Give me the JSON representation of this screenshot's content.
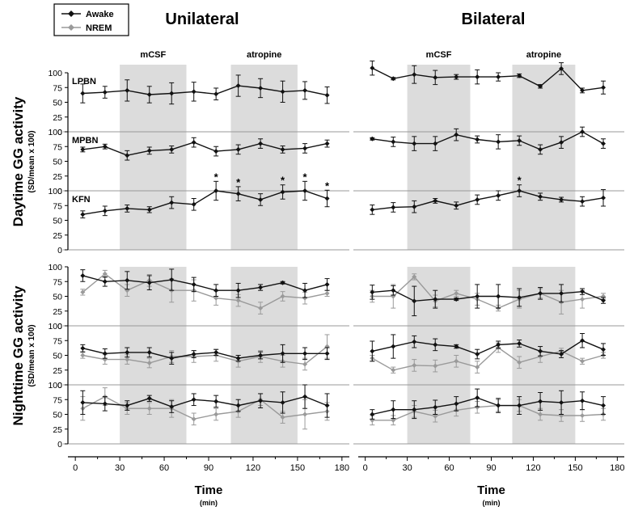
{
  "legend": {
    "entries": [
      {
        "name": "Awake",
        "color": "#111111"
      },
      {
        "name": "NREM",
        "color": "#9a9a9a"
      }
    ]
  },
  "y_labels": {
    "daytime": {
      "main": "Daytime GG activity",
      "sub": "(SD/mean x 100)"
    },
    "nighttime": {
      "main": "Nighttime GG activity",
      "sub": "(SD/mean x 100)"
    }
  },
  "chart_data": {
    "type": "line",
    "columns": [
      {
        "title": "Unilateral",
        "xlabel": "Time",
        "xunit": "(min)"
      },
      {
        "title": "Bilateral",
        "xlabel": "Time",
        "xunit": "(min)"
      }
    ],
    "shading": [
      {
        "label": "mCSF",
        "x": [
          30,
          75
        ]
      },
      {
        "label": "atropine",
        "x": [
          105,
          150
        ]
      }
    ],
    "xlim": [
      -5,
      185
    ],
    "xticks": [
      0,
      30,
      60,
      90,
      120,
      150,
      180
    ],
    "ylim": [
      0,
      100
    ],
    "yticks": [
      0,
      25,
      50,
      75,
      100
    ],
    "x": [
      5,
      20,
      35,
      50,
      65,
      80,
      95,
      110,
      125,
      140,
      155,
      170
    ],
    "day_rows": [
      {
        "label": "LPBN",
        "unilateral": {
          "awake": [
            65,
            67,
            70,
            63,
            65,
            68,
            64,
            78,
            74,
            68,
            70,
            62
          ],
          "err": [
            16,
            10,
            18,
            14,
            18,
            16,
            10,
            18,
            16,
            18,
            15,
            14
          ],
          "stars": []
        },
        "bilateral": {
          "awake": [
            108,
            90,
            97,
            92,
            93,
            93,
            93,
            95,
            77,
            107,
            70,
            75
          ],
          "err": [
            12,
            2,
            15,
            12,
            4,
            12,
            7,
            3,
            3,
            10,
            4,
            11
          ],
          "stars": []
        }
      },
      {
        "label": "MPBN",
        "unilateral": {
          "awake": [
            70,
            75,
            60,
            68,
            70,
            82,
            67,
            70,
            80,
            70,
            72,
            80
          ],
          "err": [
            4,
            4,
            8,
            6,
            6,
            8,
            8,
            8,
            8,
            6,
            8,
            6
          ],
          "stars": []
        },
        "bilateral": {
          "awake": [
            88,
            83,
            80,
            80,
            95,
            87,
            83,
            85,
            70,
            82,
            100,
            80
          ],
          "err": [
            2,
            8,
            12,
            12,
            10,
            6,
            12,
            8,
            8,
            10,
            8,
            8
          ],
          "stars": []
        }
      },
      {
        "label": "KFN",
        "unilateral": {
          "awake": [
            60,
            66,
            70,
            68,
            80,
            77,
            100,
            95,
            85,
            98,
            100,
            87
          ],
          "err": [
            6,
            8,
            6,
            5,
            10,
            10,
            16,
            12,
            10,
            12,
            16,
            14
          ],
          "stars": [
            95,
            110,
            140,
            155,
            170
          ]
        },
        "bilateral": {
          "awake": [
            68,
            72,
            73,
            83,
            75,
            85,
            92,
            100,
            90,
            85,
            82,
            88
          ],
          "err": [
            8,
            8,
            10,
            4,
            6,
            8,
            8,
            10,
            6,
            4,
            8,
            14
          ],
          "stars": [
            110
          ]
        }
      }
    ],
    "night_rows": [
      {
        "unilateral": {
          "awake": [
            85,
            75,
            77,
            73,
            78,
            70,
            60,
            60,
            65,
            73,
            60,
            70
          ],
          "awake_err": [
            10,
            8,
            15,
            12,
            18,
            12,
            10,
            12,
            5,
            2,
            12,
            10
          ],
          "nrem": [
            57,
            88,
            60,
            77,
            60,
            60,
            47,
            43,
            30,
            50,
            47,
            55
          ],
          "nrem_err": [
            5,
            6,
            10,
            10,
            20,
            18,
            12,
            10,
            10,
            8,
            10,
            5
          ]
        },
        "bilateral": {
          "awake": [
            57,
            60,
            42,
            45,
            45,
            50,
            50,
            48,
            55,
            55,
            58,
            43
          ],
          "awake_err": [
            12,
            8,
            25,
            15,
            2,
            20,
            20,
            15,
            10,
            15,
            5,
            5
          ],
          "nrem": [
            50,
            50,
            83,
            42,
            55,
            45,
            30,
            45,
            55,
            40,
            45,
            50
          ],
          "nrem_err": [
            10,
            20,
            5,
            10,
            5,
            10,
            5,
            15,
            8,
            20,
            15,
            5
          ]
        }
      },
      {
        "unilateral": {
          "awake": [
            62,
            53,
            55,
            55,
            45,
            52,
            55,
            45,
            50,
            53,
            53,
            53
          ],
          "awake_err": [
            6,
            8,
            8,
            8,
            10,
            6,
            5,
            5,
            6,
            15,
            10,
            10
          ],
          "nrem": [
            50,
            43,
            43,
            37,
            48,
            48,
            50,
            40,
            48,
            40,
            35,
            65
          ],
          "nrem_err": [
            5,
            8,
            8,
            8,
            10,
            10,
            10,
            10,
            10,
            10,
            10,
            20
          ]
        },
        "bilateral": {
          "awake": [
            57,
            65,
            73,
            68,
            65,
            52,
            68,
            70,
            57,
            52,
            75,
            60
          ],
          "awake_err": [
            17,
            20,
            10,
            10,
            3,
            8,
            6,
            6,
            8,
            6,
            12,
            10
          ],
          "nrem": [
            45,
            25,
            33,
            32,
            40,
            30,
            63,
            38,
            48,
            57,
            40,
            50
          ],
          "nrem_err": [
            5,
            5,
            10,
            10,
            10,
            10,
            8,
            10,
            10,
            5,
            5,
            5
          ]
        }
      },
      {
        "unilateral": {
          "awake": [
            70,
            68,
            65,
            77,
            63,
            75,
            72,
            65,
            73,
            70,
            80,
            65
          ],
          "awake_err": [
            20,
            12,
            8,
            5,
            10,
            10,
            10,
            10,
            12,
            18,
            20,
            20
          ],
          "nrem": [
            60,
            80,
            60,
            60,
            60,
            42,
            50,
            55,
            75,
            45,
            50,
            55
          ],
          "nrem_err": [
            20,
            15,
            10,
            10,
            15,
            10,
            10,
            10,
            10,
            10,
            25,
            15
          ]
        },
        "bilateral": {
          "awake": [
            50,
            58,
            58,
            62,
            68,
            78,
            65,
            65,
            72,
            70,
            73,
            65
          ],
          "awake_err": [
            8,
            15,
            15,
            12,
            12,
            15,
            12,
            15,
            15,
            20,
            15,
            15
          ],
          "nrem": [
            40,
            40,
            55,
            47,
            57,
            62,
            65,
            65,
            50,
            48,
            48,
            50
          ],
          "nrem_err": [
            8,
            8,
            10,
            10,
            10,
            10,
            10,
            10,
            10,
            10,
            10,
            10
          ]
        }
      }
    ]
  }
}
